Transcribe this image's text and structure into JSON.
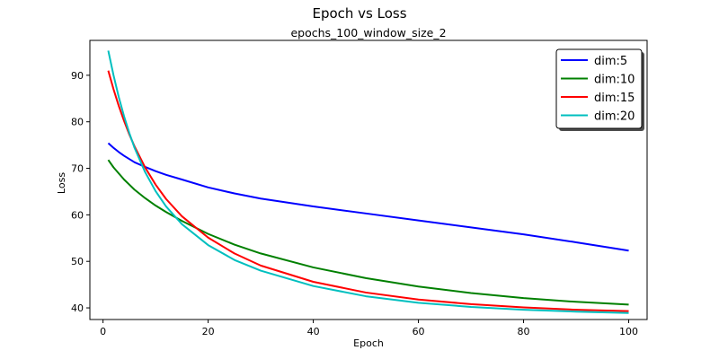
{
  "chart_data": {
    "type": "line",
    "suptitle": "Epoch vs Loss",
    "title": "epochs_100_window_size_2",
    "xlabel": "Epoch",
    "ylabel": "Loss",
    "xlim": [
      -2.5,
      103.5
    ],
    "ylim": [
      37.5,
      97.5
    ],
    "xticks": [
      0,
      20,
      40,
      60,
      80,
      100
    ],
    "yticks": [
      40,
      50,
      60,
      70,
      80,
      90
    ],
    "grid": false,
    "legend_position": "top-right",
    "series": [
      {
        "name": "dim:5",
        "color": "#0000ff",
        "x": [
          1,
          2,
          3,
          4,
          5,
          6,
          8,
          10,
          12,
          15,
          20,
          25,
          30,
          40,
          50,
          60,
          70,
          80,
          90,
          100
        ],
        "y": [
          75.4,
          74.4,
          73.5,
          72.7,
          72.0,
          71.3,
          70.3,
          69.4,
          68.6,
          67.6,
          65.9,
          64.6,
          63.5,
          61.8,
          60.3,
          58.8,
          57.3,
          55.8,
          54.1,
          52.3
        ]
      },
      {
        "name": "dim:10",
        "color": "#008000",
        "x": [
          1,
          2,
          3,
          4,
          5,
          6,
          8,
          10,
          12,
          15,
          20,
          25,
          30,
          40,
          50,
          60,
          70,
          80,
          90,
          100
        ],
        "y": [
          71.8,
          70.2,
          68.9,
          67.6,
          66.5,
          65.4,
          63.6,
          62.0,
          60.6,
          58.7,
          55.9,
          53.6,
          51.7,
          48.7,
          46.4,
          44.6,
          43.2,
          42.1,
          41.3,
          40.7
        ]
      },
      {
        "name": "dim:15",
        "color": "#ff0000",
        "x": [
          1,
          2,
          3,
          4,
          5,
          6,
          8,
          10,
          12,
          15,
          20,
          25,
          30,
          40,
          50,
          60,
          70,
          80,
          90,
          100
        ],
        "y": [
          91.0,
          87.0,
          83.4,
          80.2,
          77.3,
          74.7,
          70.2,
          66.5,
          63.4,
          59.7,
          55.1,
          51.7,
          49.1,
          45.6,
          43.3,
          41.8,
          40.8,
          40.1,
          39.6,
          39.3
        ]
      },
      {
        "name": "dim:20",
        "color": "#00bfbf",
        "x": [
          1,
          2,
          3,
          4,
          5,
          6,
          8,
          10,
          12,
          15,
          20,
          25,
          30,
          40,
          50,
          60,
          70,
          80,
          90,
          100
        ],
        "y": [
          95.3,
          90.0,
          85.3,
          81.2,
          77.6,
          74.4,
          69.2,
          65.1,
          61.8,
          58.0,
          53.5,
          50.3,
          48.0,
          44.7,
          42.5,
          41.1,
          40.2,
          39.6,
          39.2,
          38.9
        ]
      }
    ]
  }
}
